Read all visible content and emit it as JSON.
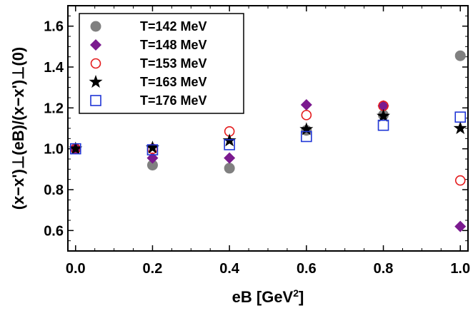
{
  "chart_data": {
    "type": "scatter",
    "title": "",
    "xlabel": "eB [GeV",
    "xlabel_sup": "2",
    "xlabel_end": "]",
    "ylabel": "(x−x')⊥(eB)/(x−x')⊥(0)",
    "xlim": [
      -0.02,
      1.02
    ],
    "ylim": [
      0.5,
      1.7
    ],
    "xticks": [
      "0.0",
      "0.2",
      "0.4",
      "0.6",
      "0.8",
      "1.0"
    ],
    "yticks": [
      "0.6",
      "0.8",
      "1.0",
      "1.2",
      "1.4",
      "1.6"
    ],
    "legend_position": "top-left",
    "grid": false,
    "x": [
      0.0,
      0.2,
      0.4,
      0.6,
      0.8,
      1.0
    ],
    "series": [
      {
        "name": "T=142 MeV",
        "marker": "filled-circle",
        "color": "#808080",
        "values": [
          1.0,
          0.92,
          0.905,
          1.09,
          1.165,
          1.455
        ]
      },
      {
        "name": "T=148 MeV",
        "marker": "filled-diamond",
        "color": "#7b1a8f",
        "values": [
          1.0,
          0.955,
          0.955,
          1.215,
          1.21,
          0.62
        ]
      },
      {
        "name": "T=153 MeV",
        "marker": "open-circle",
        "color": "#e41a1c",
        "values": [
          1.0,
          1.0,
          1.085,
          1.165,
          1.21,
          0.845
        ]
      },
      {
        "name": "T=163 MeV",
        "marker": "star",
        "color": "#000000",
        "values": [
          1.0,
          1.005,
          1.04,
          1.095,
          1.16,
          1.1
        ]
      },
      {
        "name": "T=176 MeV",
        "marker": "open-square",
        "color": "#1f35d6",
        "values": [
          1.0,
          0.995,
          1.02,
          1.06,
          1.115,
          1.155
        ]
      }
    ]
  }
}
